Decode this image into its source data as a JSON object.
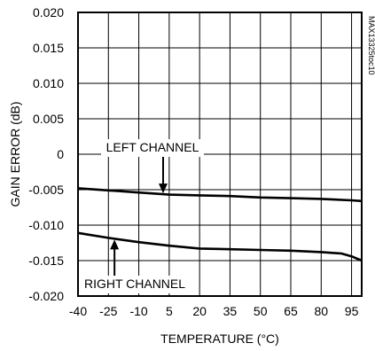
{
  "chart_data": {
    "type": "line",
    "title": "",
    "xlabel": "TEMPERATURE (°C)",
    "ylabel": "GAIN ERROR (dB)",
    "xlim": [
      -40,
      100
    ],
    "ylim": [
      -0.02,
      0.02
    ],
    "xticks": [
      -40,
      -25,
      -10,
      5,
      20,
      35,
      50,
      65,
      80,
      95
    ],
    "xtick_labels": [
      "-40",
      "-25",
      "-10",
      "5",
      "20",
      "35",
      "50",
      "65",
      "80",
      "95"
    ],
    "yticks": [
      -0.02,
      -0.015,
      -0.01,
      -0.005,
      0,
      0.005,
      0.01,
      0.015,
      0.02
    ],
    "ytick_labels": [
      "-0.020",
      "-0.015",
      "-0.010",
      "-0.005",
      "0",
      "0.005",
      "0.010",
      "0.015",
      "0.020"
    ],
    "grid": true,
    "series": [
      {
        "name": "LEFT CHANNEL",
        "x": [
          -40,
          -25,
          -10,
          5,
          20,
          35,
          50,
          65,
          80,
          95,
          100
        ],
        "y": [
          -0.0048,
          -0.0051,
          -0.0054,
          -0.0057,
          -0.0058,
          -0.0059,
          -0.0061,
          -0.0062,
          -0.0063,
          -0.0065,
          -0.0066
        ]
      },
      {
        "name": "RIGHT CHANNEL",
        "x": [
          -40,
          -25,
          -10,
          5,
          20,
          35,
          50,
          65,
          80,
          90,
          95,
          100
        ],
        "y": [
          -0.0111,
          -0.0118,
          -0.0124,
          -0.0129,
          -0.0133,
          -0.0134,
          -0.0135,
          -0.0136,
          -0.0138,
          -0.014,
          -0.0144,
          -0.015
        ]
      }
    ],
    "annotations": [
      {
        "text": "LEFT CHANNEL",
        "series": 0,
        "arrow_x": 2
      },
      {
        "text": "RIGHT CHANNEL",
        "series": 1,
        "arrow_x": -22
      }
    ],
    "figure_code": "MAX13325toc10"
  }
}
